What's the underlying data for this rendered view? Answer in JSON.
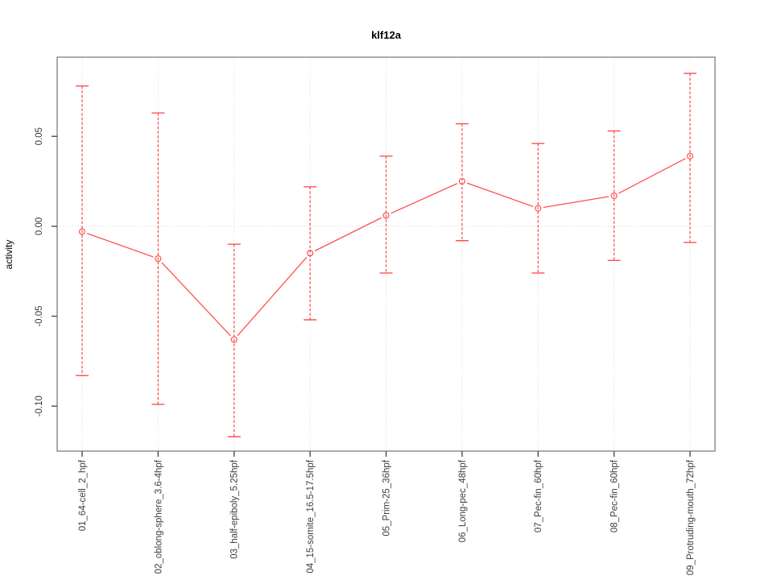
{
  "figure": {
    "title": "klf12a",
    "y_axis_title": "activity"
  },
  "chart_data": {
    "type": "line",
    "title": "klf12a",
    "xlabel": "",
    "ylabel": "activity",
    "categories": [
      "01_64-cell_2_hpf",
      "02_oblong-sphere_3.6-4hpf",
      "03_half-epiboly_5.25hpf",
      "04_15-somite_16.5-17.5hpf",
      "05_Prim-25_36hpf",
      "06_Long-pec_48hpf",
      "07_Pec-fin_60hpf",
      "08_Pec-fin_60hpf",
      "09_Protruding-mouth_72hpf"
    ],
    "series": [
      {
        "name": "activity",
        "values": [
          -0.003,
          -0.018,
          -0.063,
          -0.015,
          0.006,
          0.025,
          0.01,
          0.017,
          0.039
        ],
        "error_upper": [
          0.078,
          0.063,
          -0.01,
          0.022,
          0.039,
          0.057,
          0.046,
          0.053,
          0.085
        ],
        "error_lower": [
          -0.083,
          -0.099,
          -0.117,
          -0.052,
          -0.026,
          -0.008,
          -0.026,
          -0.019,
          -0.009
        ]
      }
    ],
    "marker": "open-circle",
    "error_bar_style": "dashed-with-caps",
    "legend": "none",
    "grid": "dotted vertical gridline per category, dotted horizontal line at y=0",
    "ytick_labels": [
      "0.05",
      "0.00",
      "-0.05",
      "-0.10"
    ],
    "ytick_values": [
      0.05,
      0.0,
      -0.05,
      -0.1
    ],
    "ylim": [
      -0.125,
      0.094
    ],
    "colors": {
      "series": "#ff5252",
      "grid": "#d9d9d9",
      "frame": "#8f8f8f",
      "tick": "#4d4d4d",
      "tick_label": "#3d3d3d",
      "background": "#ffffff"
    }
  }
}
